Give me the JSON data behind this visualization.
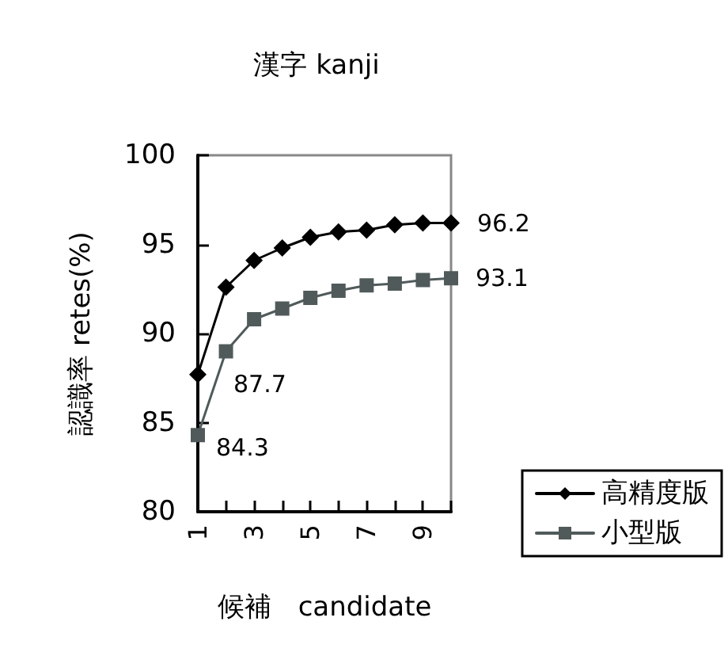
{
  "chart_data": {
    "type": "line",
    "title": "漢字 kanji",
    "xlabel": "候補　candidate",
    "ylabel": "認識率 retes(%)",
    "categories": [
      "1",
      null,
      "3",
      null,
      "5",
      null,
      "7",
      null,
      "9",
      null
    ],
    "ylim": [
      80,
      100
    ],
    "yticks": [
      80,
      85,
      90,
      95,
      100
    ],
    "grid": false,
    "legend": "bottom right",
    "series": [
      {
        "name": "高精度版",
        "color": "#000000",
        "marker": "diamond",
        "values": [
          87.7,
          92.6,
          94.1,
          94.8,
          95.4,
          95.7,
          95.8,
          96.1,
          96.2,
          96.2
        ],
        "value_labels": [
          "87.7",
          null,
          null,
          null,
          null,
          null,
          null,
          null,
          null,
          "96.2"
        ]
      },
      {
        "name": "小型版",
        "color": "#505a5a",
        "marker": "square",
        "values": [
          84.3,
          89.0,
          90.8,
          91.4,
          92.0,
          92.4,
          92.7,
          92.8,
          93.0,
          93.1
        ],
        "value_labels": [
          "84.3",
          null,
          null,
          null,
          null,
          null,
          null,
          null,
          null,
          "93.1"
        ]
      }
    ]
  }
}
